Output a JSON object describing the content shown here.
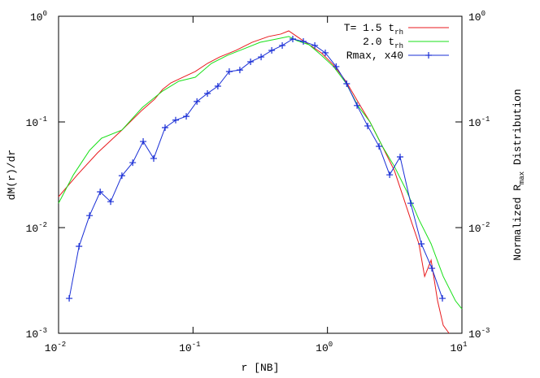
{
  "chart_data": {
    "type": "line",
    "xlabel": "r [NB]",
    "ylabel": "dM(r)/dr",
    "y2label": {
      "parts": [
        "Normalized R",
        "max",
        " Distribution"
      ]
    },
    "log_x": true,
    "log_y": true,
    "xlim": [
      0.01,
      10
    ],
    "ylim": [
      0.001,
      1
    ],
    "y2lim": [
      0.001,
      1
    ],
    "xticks": [
      {
        "value": 0.01,
        "label": "10",
        "sup": "-2"
      },
      {
        "value": 0.1,
        "label": "10",
        "sup": "-1"
      },
      {
        "value": 1,
        "label": "10",
        "sup": "0"
      },
      {
        "value": 10,
        "label": "10",
        "sup": "1"
      }
    ],
    "yticks": [
      {
        "value": 0.001,
        "label": "10",
        "sup": "-3"
      },
      {
        "value": 0.01,
        "label": "10",
        "sup": "-2"
      },
      {
        "value": 0.1,
        "label": "10",
        "sup": "-1"
      },
      {
        "value": 1,
        "label": "10",
        "sup": "0"
      }
    ],
    "y2ticks": [
      {
        "value": 0.001,
        "label": "10",
        "sup": "-3"
      },
      {
        "value": 0.01,
        "label": "10",
        "sup": "-2"
      },
      {
        "value": 0.1,
        "label": "10",
        "sup": "-1"
      },
      {
        "value": 1,
        "label": "10",
        "sup": "0"
      }
    ],
    "legend": "top-right",
    "series": [
      {
        "name": "T= 1.5 t",
        "subscript": "rh",
        "color": "#e8191c",
        "marker": false,
        "x": [
          0.01,
          0.0138,
          0.0195,
          0.0296,
          0.042,
          0.0518,
          0.0594,
          0.0684,
          0.0843,
          0.104,
          0.128,
          0.158,
          0.208,
          0.275,
          0.364,
          0.449,
          0.515,
          0.593,
          0.73,
          0.9,
          1.11,
          1.37,
          1.68,
          2.07,
          2.56,
          3.15,
          3.62,
          4.16,
          4.79,
          5.28,
          5.9,
          6.59,
          7.26,
          8.02
        ],
        "values": [
          0.0196,
          0.0316,
          0.051,
          0.0838,
          0.13,
          0.164,
          0.203,
          0.234,
          0.265,
          0.3,
          0.358,
          0.412,
          0.475,
          0.567,
          0.643,
          0.678,
          0.727,
          0.643,
          0.538,
          0.451,
          0.345,
          0.243,
          0.156,
          0.1,
          0.0588,
          0.0345,
          0.0203,
          0.0119,
          0.00702,
          0.00345,
          0.00492,
          0.00203,
          0.00119,
          0.001
        ]
      },
      {
        "name": "2.0 t",
        "subscript": "rh",
        "color": "#19e019",
        "marker": false,
        "x": [
          0.01,
          0.0129,
          0.017,
          0.0209,
          0.0296,
          0.042,
          0.0594,
          0.0785,
          0.104,
          0.137,
          0.181,
          0.239,
          0.316,
          0.418,
          0.515,
          0.593,
          0.73,
          0.9,
          1.11,
          1.37,
          1.68,
          2.07,
          2.56,
          3.15,
          3.88,
          4.79,
          5.9,
          7.26,
          8.95,
          10
        ],
        "values": [
          0.017,
          0.0316,
          0.0538,
          0.0702,
          0.0838,
          0.137,
          0.196,
          0.243,
          0.265,
          0.358,
          0.428,
          0.492,
          0.567,
          0.609,
          0.643,
          0.588,
          0.538,
          0.428,
          0.334,
          0.234,
          0.143,
          0.1,
          0.0588,
          0.0378,
          0.0222,
          0.0119,
          0.00702,
          0.00345,
          0.00203,
          0.0017
        ]
      },
      {
        "name": "Rmax, x40",
        "color": "#1a2fd6",
        "marker": true,
        "axis": "y2",
        "x": [
          0.012,
          0.0142,
          0.017,
          0.0204,
          0.0244,
          0.0296,
          0.0356,
          0.0426,
          0.051,
          0.062,
          0.0743,
          0.0891,
          0.107,
          0.128,
          0.153,
          0.186,
          0.223,
          0.268,
          0.321,
          0.385,
          0.461,
          0.552,
          0.662,
          0.805,
          0.964,
          1.16,
          1.39,
          1.66,
          1.99,
          2.42,
          2.9,
          3.47,
          4.16,
          4.99,
          5.98,
          7.16
        ],
        "values": [
          0.00214,
          0.00665,
          0.013,
          0.0218,
          0.0176,
          0.031,
          0.0412,
          0.0653,
          0.0451,
          0.0883,
          0.104,
          0.113,
          0.156,
          0.186,
          0.218,
          0.3,
          0.31,
          0.371,
          0.412,
          0.475,
          0.529,
          0.609,
          0.578,
          0.529,
          0.451,
          0.334,
          0.23,
          0.143,
          0.0916,
          0.0588,
          0.0316,
          0.0467,
          0.017,
          0.00702,
          0.00412,
          0.00214
        ]
      }
    ]
  }
}
